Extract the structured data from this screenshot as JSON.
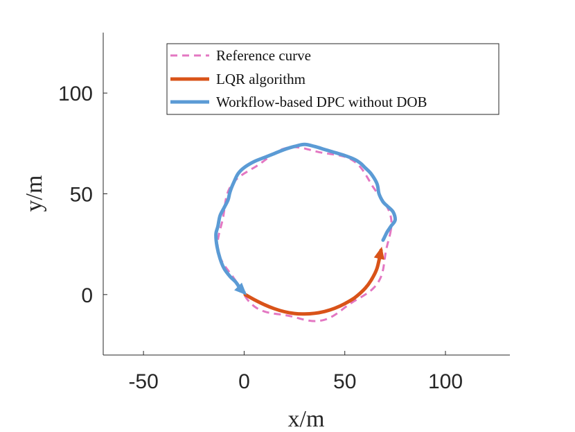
{
  "chart_data": {
    "type": "line",
    "title": "",
    "xlabel": "x/m",
    "ylabel": "y/m",
    "xlim": [
      -70,
      132
    ],
    "ylim": [
      -30,
      130
    ],
    "xticks": [
      -50,
      0,
      50,
      100
    ],
    "xtick_labels": [
      "-50",
      "0",
      "50",
      "100"
    ],
    "yticks": [
      0,
      50,
      100
    ],
    "ytick_labels": [
      "0",
      "50",
      "100"
    ],
    "grid": false,
    "legend_position": "top-center",
    "legend": [
      {
        "key": "reference",
        "label": "Reference curve"
      },
      {
        "key": "lqr",
        "label": "LQR algorithm"
      },
      {
        "key": "dpc",
        "label": "Workflow-based DPC without DOB"
      }
    ],
    "series": [
      {
        "key": "reference",
        "name": "Reference curve",
        "color": "#e377c2",
        "style": "dashed",
        "circle": {
          "center": [
            30,
            30
          ],
          "radius": 42.5
        },
        "wave_amplitude": 1.2,
        "wave_count": 8
      },
      {
        "key": "lqr",
        "name": "LQR algorithm",
        "color": "#d95319",
        "style": "solid",
        "arrow_at_end": true,
        "x": [
          0.5,
          5,
          10,
          15,
          20,
          25,
          30,
          35,
          40,
          45,
          50,
          55,
          60,
          63,
          66,
          68
        ],
        "y": [
          0,
          -2.5,
          -5,
          -7,
          -8.5,
          -9.4,
          -9.6,
          -9.3,
          -8.4,
          -6.8,
          -4.5,
          -1.5,
          3,
          7,
          13,
          22
        ]
      },
      {
        "key": "dpc",
        "name": "Workflow-based DPC without DOB",
        "color": "#5b9bd5",
        "style": "solid",
        "arrow_at_end": true,
        "x": [
          69,
          70,
          71,
          73,
          75,
          74,
          71,
          69,
          67,
          66,
          63,
          60,
          58,
          55,
          50,
          45,
          40,
          35,
          30,
          25,
          20,
          15,
          10,
          5,
          0,
          -3,
          -5,
          -7,
          -8,
          -10,
          -12,
          -13,
          -14,
          -13.5,
          -12,
          -10,
          -7,
          -4,
          -2,
          0
        ],
        "y": [
          27,
          29,
          31,
          34,
          37,
          41,
          44,
          46,
          50,
          55,
          60,
          63,
          65,
          67,
          69,
          70.5,
          72,
          73.5,
          74.5,
          73.5,
          72,
          70,
          68,
          66,
          63,
          60,
          56,
          51,
          47,
          43,
          39,
          34,
          30,
          24,
          18,
          13,
          9,
          6,
          3,
          1
        ]
      }
    ]
  }
}
